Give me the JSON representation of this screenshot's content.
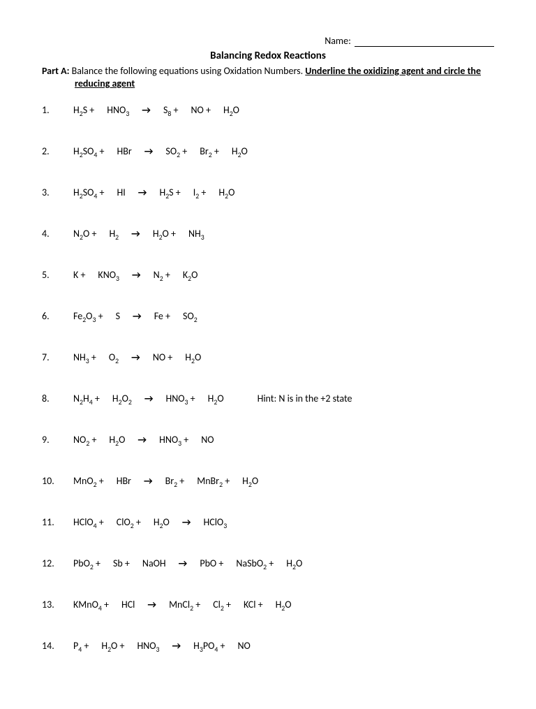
{
  "header": {
    "name_label": "Name:",
    "title": "Balancing Redox Reactions",
    "part_label": "Part A:",
    "instr_1": " Balance the following equations using Oxidation Numbers. ",
    "instr_underline": "Underline the oxidizing agent and circle the",
    "instr_2": "reducing agent"
  },
  "problems": [
    {
      "n": "1.",
      "t": [
        {
          "f": "H",
          "s": "2",
          "r": "S +"
        },
        {
          "f": "HNO",
          "s": "3",
          "r": ""
        },
        "→",
        {
          "f": "S",
          "s": "8",
          "r": " +"
        },
        {
          "f": "NO +",
          "s": "",
          "r": ""
        },
        {
          "f": "H",
          "s": "2",
          "r": "O"
        }
      ]
    },
    {
      "n": "2.",
      "t": [
        {
          "f": "H",
          "s": "2",
          "r": "SO"
        },
        {
          "ss": "4",
          "rr": " +"
        },
        {
          "f": "HBr",
          "s": "",
          "r": ""
        },
        "→",
        {
          "f": "SO",
          "s": "2",
          "r": " +"
        },
        {
          "f": "Br",
          "s": "2",
          "r": " +"
        },
        {
          "f": "H",
          "s": "2",
          "r": "O"
        }
      ]
    },
    {
      "n": "3.",
      "t": [
        {
          "f": "H",
          "s": "2",
          "r": "SO"
        },
        {
          "ss": "4",
          "rr": " +"
        },
        {
          "f": "HI",
          "s": "",
          "r": ""
        },
        "→",
        {
          "f": "H",
          "s": "2",
          "r": "S +"
        },
        {
          "f": "I",
          "s": "2",
          "r": " +"
        },
        {
          "f": "H",
          "s": "2",
          "r": "O"
        }
      ]
    },
    {
      "n": "4.",
      "t": [
        {
          "f": "N",
          "s": "2",
          "r": "O +"
        },
        {
          "f": "H",
          "s": "2",
          "r": ""
        },
        "→",
        {
          "f": "H",
          "s": "2",
          "r": "O +"
        },
        {
          "f": "NH",
          "s": "3",
          "r": ""
        }
      ]
    },
    {
      "n": "5.",
      "t": [
        {
          "f": "K +",
          "s": "",
          "r": ""
        },
        {
          "f": "KNO",
          "s": "3",
          "r": ""
        },
        "→",
        {
          "f": "N",
          "s": "2",
          "r": " +"
        },
        {
          "f": "K",
          "s": "2",
          "r": "O"
        }
      ]
    },
    {
      "n": "6.",
      "t": [
        {
          "f": "Fe",
          "s": "2",
          "r": "O"
        },
        {
          "ss": "3",
          "rr": " +"
        },
        {
          "f": "S",
          "s": "",
          "r": ""
        },
        "→",
        {
          "f": "Fe +",
          "s": "",
          "r": ""
        },
        {
          "f": "SO",
          "s": "2",
          "r": ""
        }
      ]
    },
    {
      "n": "7.",
      "t": [
        {
          "f": "NH",
          "s": "3",
          "r": " +"
        },
        {
          "f": "O",
          "s": "2",
          "r": ""
        },
        "→",
        {
          "f": "NO +",
          "s": "",
          "r": ""
        },
        {
          "f": "H",
          "s": "2",
          "r": "O"
        }
      ]
    },
    {
      "n": "8.",
      "t": [
        {
          "f": "N",
          "s": "2",
          "r": "H"
        },
        {
          "ss": "4",
          "rr": " +"
        },
        {
          "f": "H",
          "s": "2",
          "r": "O"
        },
        {
          "ss": "2",
          "rr": ""
        },
        "→",
        {
          "f": "HNO",
          "s": "3",
          "r": " +"
        },
        {
          "f": "H",
          "s": "2",
          "r": "O"
        }
      ],
      "hint": "Hint:  N is in the +2 state"
    },
    {
      "n": "9.",
      "t": [
        {
          "f": "NO",
          "s": "2",
          "r": " +"
        },
        {
          "f": "H",
          "s": "2",
          "r": "O"
        },
        "→",
        {
          "f": "HNO",
          "s": "3",
          "r": " +"
        },
        {
          "f": "NO",
          "s": "",
          "r": ""
        }
      ]
    },
    {
      "n": "10.",
      "t": [
        {
          "f": "MnO",
          "s": "2",
          "r": " +"
        },
        {
          "f": "HBr",
          "s": "",
          "r": ""
        },
        "→",
        {
          "f": "Br",
          "s": "2",
          "r": " +"
        },
        {
          "f": "MnBr",
          "s": "2",
          "r": " +"
        },
        {
          "f": "H",
          "s": "2",
          "r": "O"
        }
      ]
    },
    {
      "n": "11.",
      "t": [
        {
          "f": "HClO",
          "s": "4",
          "r": " +"
        },
        {
          "f": "ClO",
          "s": "2",
          "r": " +"
        },
        {
          "f": "H",
          "s": "2",
          "r": "O"
        },
        "→",
        {
          "f": "HClO",
          "s": "3",
          "r": ""
        }
      ]
    },
    {
      "n": "12.",
      "t": [
        {
          "f": "PbO",
          "s": "2",
          "r": " +"
        },
        {
          "f": "Sb +",
          "s": "",
          "r": ""
        },
        {
          "f": "NaOH",
          "s": "",
          "r": ""
        },
        "→",
        {
          "f": "PbO +",
          "s": "",
          "r": ""
        },
        {
          "f": "NaSbO",
          "s": "2",
          "r": " +"
        },
        {
          "f": "H",
          "s": "2",
          "r": "O"
        }
      ]
    },
    {
      "n": "13.",
      "t": [
        {
          "f": "KMnO",
          "s": "4",
          "r": " +"
        },
        {
          "f": "HCl",
          "s": "",
          "r": ""
        },
        "→",
        {
          "f": "MnCl",
          "s": "2",
          "r": " +"
        },
        {
          "f": "Cl",
          "s": "2",
          "r": " +"
        },
        {
          "f": "KCl +",
          "s": "",
          "r": ""
        },
        {
          "f": "H",
          "s": "2",
          "r": "O"
        }
      ]
    },
    {
      "n": "14.",
      "t": [
        {
          "f": "P",
          "s": "4",
          "r": "  +"
        },
        {
          "f": "H",
          "s": "2",
          "r": "O   +"
        },
        {
          "f": "HNO",
          "s": "3",
          "r": ""
        },
        "→",
        {
          "f": "H",
          "s": "3",
          "r": "PO"
        },
        {
          "ss": "4",
          "rr": "  +"
        },
        {
          "f": "NO",
          "s": "",
          "r": ""
        }
      ]
    }
  ]
}
